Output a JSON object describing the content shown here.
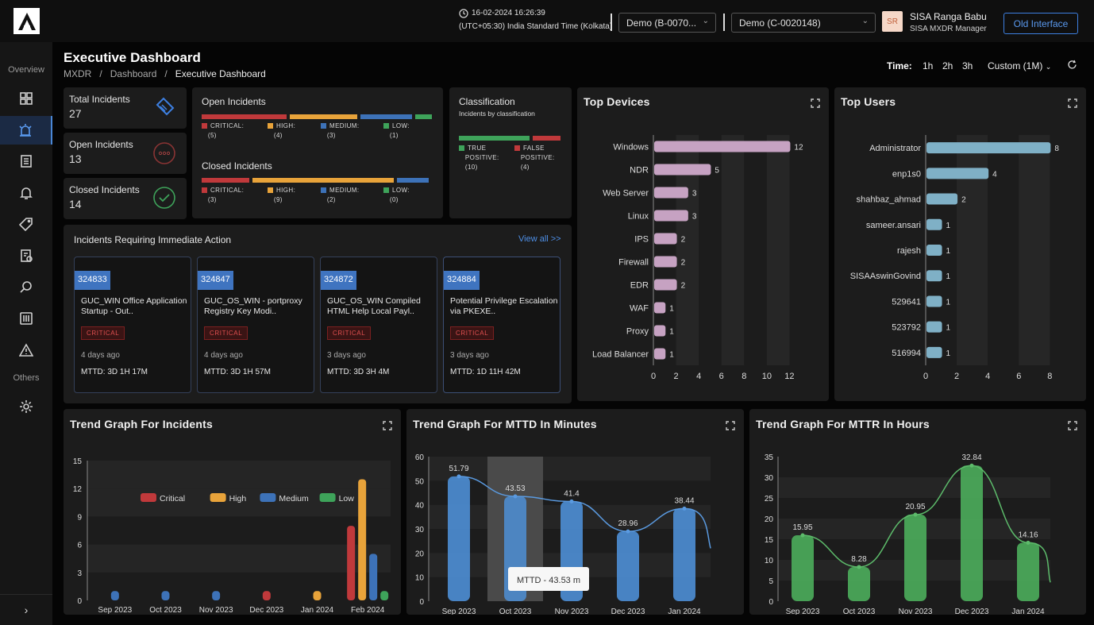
{
  "header": {
    "datetime": "16-02-2024 16:26:39",
    "timezone": "(UTC+05:30) India Standard Time (Kolkata)",
    "select_b": "Demo (B-0070...",
    "select_c": "Demo (C-0020148)",
    "avatar_initials": "SR",
    "user_name": "SISA Ranga Babu",
    "user_role": "SISA MXDR Manager",
    "old_interface": "Old Interface"
  },
  "sidebar": {
    "overview_label": "Overview",
    "others_label": "Others",
    "icons": [
      "dashboard-grid-icon",
      "alarm-icon",
      "document-list-icon",
      "bell-icon",
      "tag-icon",
      "report-icon",
      "search-doc-icon",
      "sliders-icon",
      "warning-icon",
      "gear-icon"
    ],
    "expand_icon": "chevron-right-icon"
  },
  "page": {
    "title": "Executive Dashboard",
    "breadcrumb": [
      "MXDR",
      "/",
      "Dashboard",
      "/",
      "Executive Dashboard"
    ],
    "time_label": "Time:",
    "time_options": [
      "1h",
      "2h",
      "3h"
    ],
    "custom": "Custom (1M)"
  },
  "summary": {
    "total_label": "Total Incidents",
    "total_value": "27",
    "open_label": "Open Incidents",
    "open_value": "13",
    "closed_label": "Closed Incidents",
    "closed_value": "14"
  },
  "severity": {
    "open_title": "Open Incidents",
    "open_counts": {
      "critical": 5,
      "high": 4,
      "medium": 3,
      "low": 1
    },
    "open_labels": [
      "CRITICAL:",
      "(5)",
      "HIGH:",
      "(4)",
      "MEDIUM:",
      "(3)",
      "LOW:",
      "(1)"
    ],
    "closed_title": "Closed Incidents",
    "closed_counts": {
      "critical": 3,
      "high": 9,
      "medium": 2,
      "low": 0
    },
    "closed_labels": [
      "CRITICAL:",
      "(3)",
      "HIGH:",
      "(9)",
      "MEDIUM:",
      "(2)",
      "LOW:",
      "(0)"
    ],
    "colors": {
      "critical": "#c0393b",
      "high": "#e8a33a",
      "medium": "#3d72b8",
      "low": "#3ea35a"
    }
  },
  "classification": {
    "title": "Classification",
    "subtitle": "Incidents by classification",
    "counts": {
      "true_positive": 10,
      "false_positive": 4
    },
    "true_label": [
      "TRUE",
      "POSITIVE:",
      "(10)"
    ],
    "false_label": [
      "FALSE",
      "POSITIVE:",
      "(4)"
    ]
  },
  "immediate": {
    "title": "Incidents Requiring Immediate Action",
    "view_all": "View all >>",
    "items": [
      {
        "id": "324833",
        "name": "GUC_WIN Office Application Startup - Out..",
        "severity": "CRITICAL",
        "ago": "4 days ago",
        "mttd": "MTTD: 3D 1H 17M"
      },
      {
        "id": "324847",
        "name": "GUC_OS_WIN - portproxy Registry Key Modi..",
        "severity": "CRITICAL",
        "ago": "4 days ago",
        "mttd": "MTTD: 3D 1H 57M"
      },
      {
        "id": "324872",
        "name": "GUC_OS_WIN Compiled HTML Help Local Payl..",
        "severity": "CRITICAL",
        "ago": "3 days ago",
        "mttd": "MTTD: 3D 3H 4M"
      },
      {
        "id": "324884",
        "name": "Potential Privilege Escalation via PKEXE..",
        "severity": "CRITICAL",
        "ago": "3 days ago",
        "mttd": "MTTD: 1D 11H 42M"
      }
    ]
  },
  "chart_data": [
    {
      "type": "bar",
      "orientation": "horizontal",
      "title": "Top Devices",
      "categories": [
        "Windows",
        "NDR",
        "Web Server",
        "Linux",
        "IPS",
        "Firewall",
        "EDR",
        "WAF",
        "Proxy",
        "Load Balancer"
      ],
      "values": [
        12,
        5,
        3,
        3,
        2,
        2,
        2,
        1,
        1,
        1
      ],
      "xlim": [
        0,
        14
      ],
      "xticks": [
        0,
        2,
        4,
        6,
        8,
        10,
        12
      ],
      "color": "#c6a2c2"
    },
    {
      "type": "bar",
      "orientation": "horizontal",
      "title": "Top Users",
      "categories": [
        "Administrator",
        "enp1s0",
        "shahbaz_ahmad",
        "sameer.ansari",
        "rajesh",
        "SISAAswinGovind",
        "529641",
        "523792",
        "516994"
      ],
      "values": [
        8,
        4,
        2,
        1,
        1,
        1,
        1,
        1,
        1
      ],
      "xlim": [
        0,
        8.8
      ],
      "xticks": [
        0,
        2,
        4,
        6,
        8
      ],
      "color": "#7fb0c6"
    },
    {
      "type": "bar",
      "title": "Trend Graph For Incidents",
      "categories": [
        "Sep 2023",
        "Oct 2023",
        "Nov 2023",
        "Dec 2023",
        "Jan 2024",
        "Feb 2024"
      ],
      "series": [
        {
          "name": "Critical",
          "color": "#c0393b",
          "values": [
            0,
            0,
            0,
            1,
            0,
            8
          ]
        },
        {
          "name": "High",
          "color": "#e8a33a",
          "values": [
            0,
            0,
            0,
            0,
            1,
            13
          ]
        },
        {
          "name": "Medium",
          "color": "#3d72b8",
          "values": [
            1,
            1,
            1,
            0,
            0,
            5
          ]
        },
        {
          "name": "Low",
          "color": "#3ea35a",
          "values": [
            0,
            0,
            0,
            0,
            0,
            1
          ]
        }
      ],
      "ylim": [
        0,
        15
      ],
      "yticks": [
        0,
        3,
        6,
        9,
        12,
        15
      ],
      "legend": "top"
    },
    {
      "type": "bar",
      "overlay": "line",
      "title": "Trend Graph For MTTD In Minutes",
      "categories": [
        "Sep 2023",
        "Oct 2023",
        "Nov 2023",
        "Dec 2023",
        "Jan 2024"
      ],
      "values": [
        51.79,
        43.53,
        41.4,
        28.96,
        38.44
      ],
      "value_labels": [
        "51.79",
        "43.53",
        "41.4",
        "28.96",
        "38.44"
      ],
      "ylim": [
        0,
        60
      ],
      "yticks": [
        0,
        10,
        20,
        30,
        40,
        50,
        60
      ],
      "color": "#4e8fd6",
      "highlight_index": 1,
      "tooltip": "MTTD - 43.53 m"
    },
    {
      "type": "bar",
      "overlay": "line",
      "title": "Trend Graph For MTTR In Hours",
      "categories": [
        "Sep 2023",
        "Oct 2023",
        "Nov 2023",
        "Dec 2023",
        "Jan 2024"
      ],
      "values": [
        15.95,
        8.28,
        20.95,
        32.84,
        14.16
      ],
      "value_labels": [
        "15.95",
        "8.28",
        "20.95",
        "32.84",
        "14.16"
      ],
      "ylim": [
        0,
        35
      ],
      "yticks": [
        0,
        5,
        10,
        15,
        20,
        25,
        30,
        35
      ],
      "color": "#4cae5c"
    }
  ]
}
